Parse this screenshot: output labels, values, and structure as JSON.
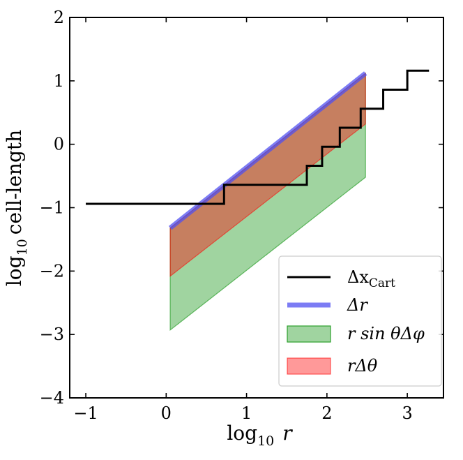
{
  "chart_data": {
    "type": "line",
    "xlabel": "log10 r",
    "ylabel": "log10 cell-length",
    "xlim": [
      -1.2,
      3.45
    ],
    "ylim": [
      -4,
      2
    ],
    "xticks": [
      {
        "value": -1,
        "label": "−1"
      },
      {
        "value": 0,
        "label": "0"
      },
      {
        "value": 1,
        "label": "1"
      },
      {
        "value": 2,
        "label": "2"
      },
      {
        "value": 3,
        "label": "3"
      }
    ],
    "yticks": [
      {
        "value": -4,
        "label": "−4"
      },
      {
        "value": -3,
        "label": "−3"
      },
      {
        "value": -2,
        "label": "−2"
      },
      {
        "value": -1,
        "label": "−1"
      },
      {
        "value": 0,
        "label": "0"
      },
      {
        "value": 1,
        "label": "1"
      },
      {
        "value": 2,
        "label": "2"
      }
    ],
    "legend_position": "lower-right",
    "series": [
      {
        "name": "Δx_Cart",
        "kind": "step",
        "color": "#000000",
        "x": [
          -1.0,
          0.72,
          0.72,
          1.75,
          1.75,
          1.94,
          1.94,
          2.16,
          2.16,
          2.42,
          2.42,
          2.7,
          2.7,
          3.0,
          3.0,
          3.27
        ],
        "y": [
          -0.94,
          -0.94,
          -0.64,
          -0.64,
          -0.34,
          -0.34,
          -0.04,
          -0.04,
          0.26,
          0.26,
          0.56,
          0.56,
          0.86,
          0.86,
          1.16,
          1.16
        ]
      },
      {
        "name": "Δr",
        "kind": "line",
        "color": "#5050f0",
        "x": [
          0.05,
          2.48
        ],
        "y": [
          -1.32,
          1.12
        ]
      },
      {
        "name": "r sin θ Δφ",
        "kind": "band",
        "color": "#2ca02c",
        "x": [
          0.05,
          2.48
        ],
        "y_low": [
          -2.93,
          -0.52
        ],
        "y_high": [
          -1.32,
          1.12
        ]
      },
      {
        "name": "r Δθ",
        "kind": "band",
        "color": "#ff0000",
        "x": [
          0.05,
          2.48
        ],
        "y_low": [
          -2.08,
          0.32
        ],
        "y_high": [
          -1.32,
          1.12
        ]
      }
    ]
  },
  "axis_labels": {
    "x_prefix": "log",
    "x_sub": "10",
    "x_var": "r",
    "y_prefix": "log",
    "y_sub": "10",
    "y_text": "cell-length"
  },
  "legend": {
    "items": [
      {
        "main": "Δx",
        "sub": "Cart"
      },
      {
        "main": "Δr",
        "sub": ""
      },
      {
        "main": "r sin θΔφ",
        "sub": ""
      },
      {
        "main": "rΔθ",
        "sub": ""
      }
    ]
  }
}
